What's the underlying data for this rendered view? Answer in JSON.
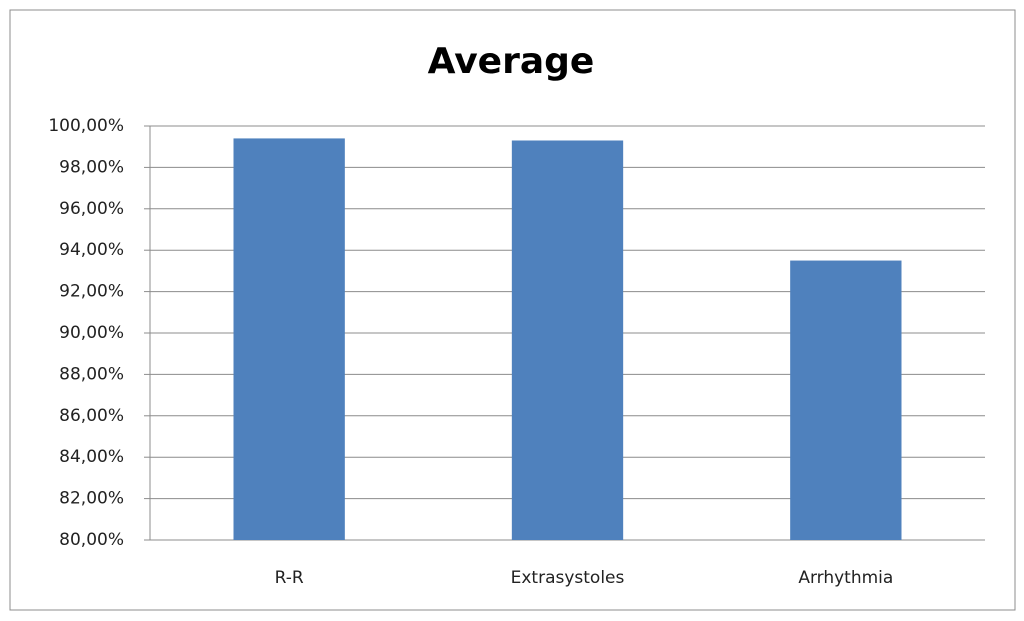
{
  "chart_data": {
    "type": "bar",
    "title": "Average",
    "categories": [
      "R-R",
      "Extrasystoles",
      "Arrhythmia"
    ],
    "values": [
      99.4,
      99.3,
      93.5
    ],
    "color": "#4f81bd",
    "ylim": [
      80,
      100
    ],
    "yticks": [
      {
        "value": 80,
        "label": "80,00%"
      },
      {
        "value": 82,
        "label": "82,00%"
      },
      {
        "value": 84,
        "label": "84,00%"
      },
      {
        "value": 86,
        "label": "86,00%"
      },
      {
        "value": 88,
        "label": "88,00%"
      },
      {
        "value": 90,
        "label": "90,00%"
      },
      {
        "value": 92,
        "label": "92,00%"
      },
      {
        "value": 94,
        "label": "94,00%"
      },
      {
        "value": 96,
        "label": "96,00%"
      },
      {
        "value": 98,
        "label": "98,00%"
      },
      {
        "value": 100,
        "label": "100,00%"
      }
    ],
    "grid": true
  }
}
